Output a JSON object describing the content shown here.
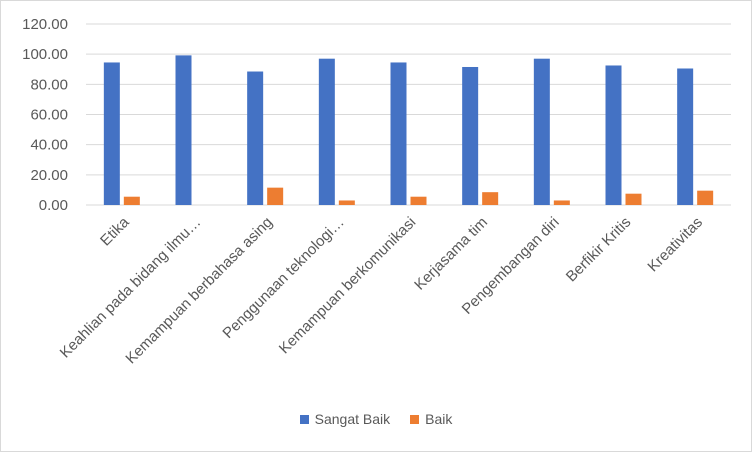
{
  "chart_data": {
    "type": "bar",
    "categories": [
      "Etika",
      "Keahlian pada bidang ilmu…",
      "Kemampuan berbahasa asing",
      "Penggunaan teknologi…",
      "Kemampuan berkomunikasi",
      "Kerjasama tim",
      "Pengembangan diri",
      "Berfikir Kritis",
      "Kreativitas"
    ],
    "series": [
      {
        "name": "Sangat Baik",
        "color": "#4472c4",
        "values": [
          94.5,
          99.2,
          88.5,
          97.0,
          94.5,
          91.5,
          97.0,
          92.5,
          90.5
        ]
      },
      {
        "name": "Baik",
        "color": "#ed7d31",
        "values": [
          5.5,
          0,
          11.5,
          3.0,
          5.5,
          8.5,
          3.0,
          7.5,
          9.5
        ]
      }
    ],
    "yticks": [
      "0.00",
      "20.00",
      "40.00",
      "60.00",
      "80.00",
      "100.00",
      "120.00"
    ],
    "ylim": [
      0,
      120
    ],
    "grid": true,
    "legend_position": "bottom"
  }
}
